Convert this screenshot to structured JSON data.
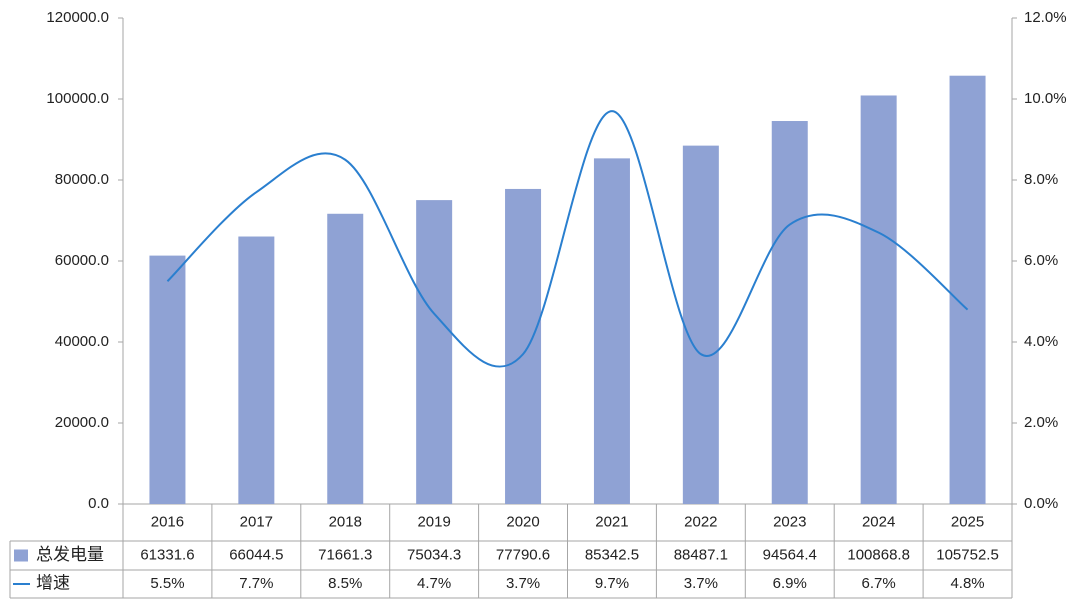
{
  "chart_data": {
    "type": "bar_line",
    "categories": [
      "2016",
      "2017",
      "2018",
      "2019",
      "2020",
      "2021",
      "2022",
      "2023",
      "2024",
      "2025"
    ],
    "series": [
      {
        "name": "总发电量",
        "type": "bar",
        "color": "#8fa2d4",
        "values": [
          61331.6,
          66044.5,
          71661.3,
          75034.3,
          77790.6,
          85342.5,
          88487.1,
          94564.4,
          100868.8,
          105752.5
        ]
      },
      {
        "name": "增速",
        "type": "line",
        "axis": "y2",
        "color": "#2a7fcf",
        "values": [
          5.5,
          7.7,
          8.5,
          4.7,
          3.7,
          9.7,
          3.7,
          6.9,
          6.7,
          4.8
        ],
        "value_labels": [
          "5.5%",
          "7.7%",
          "8.5%",
          "4.7%",
          "3.7%",
          "9.7%",
          "3.7%",
          "6.9%",
          "6.7%",
          "4.8%"
        ]
      }
    ],
    "ylim": [
      0,
      120000
    ],
    "yticks": [
      {
        "value": 0,
        "label": "0.0"
      },
      {
        "value": 20000,
        "label": "20000.0"
      },
      {
        "value": 40000,
        "label": "40000.0"
      },
      {
        "value": 60000,
        "label": "60000.0"
      },
      {
        "value": 80000,
        "label": "80000.0"
      },
      {
        "value": 100000,
        "label": "100000.0"
      },
      {
        "value": 120000,
        "label": "120000.0"
      }
    ],
    "y2lim": [
      0,
      12
    ],
    "y2ticks": [
      {
        "value": 0,
        "label": "0.0%"
      },
      {
        "value": 2,
        "label": "2.0%"
      },
      {
        "value": 4,
        "label": "4.0%"
      },
      {
        "value": 6,
        "label": "6.0%"
      },
      {
        "value": 8,
        "label": "8.0%"
      },
      {
        "value": 10,
        "label": "10.0%"
      },
      {
        "value": 12,
        "label": "12.0%"
      }
    ],
    "smooth": true
  }
}
